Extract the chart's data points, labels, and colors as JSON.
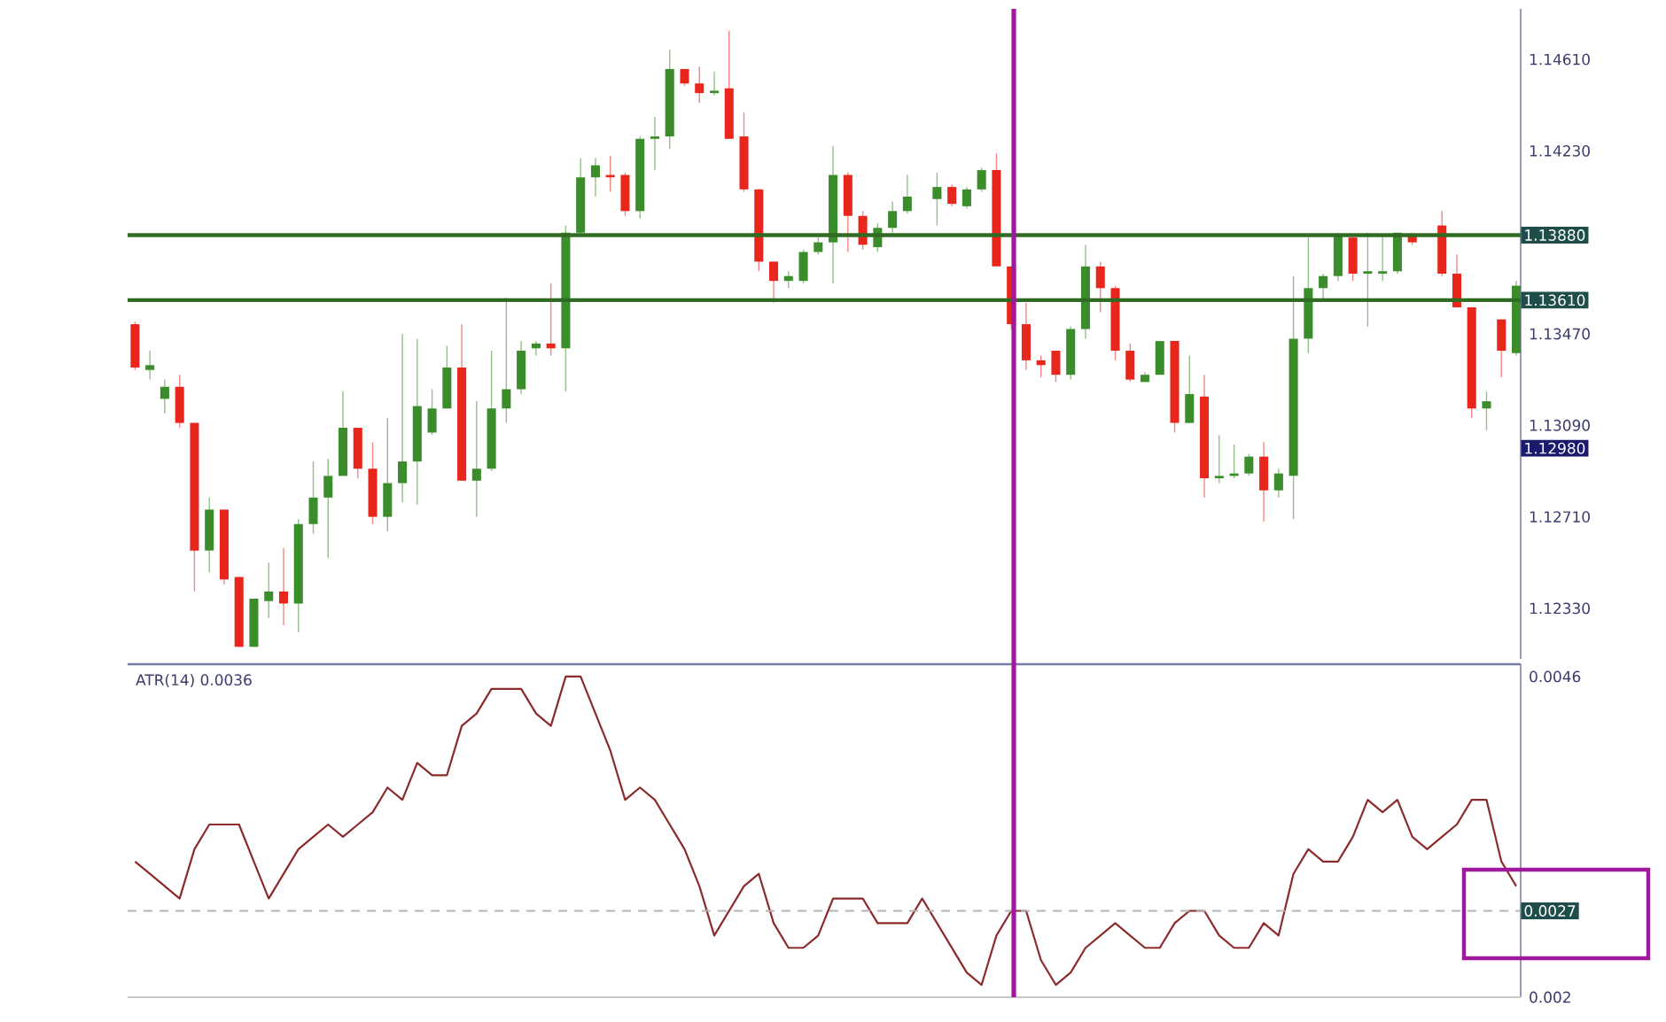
{
  "chart_data": [
    {
      "type": "candlestick",
      "categories": [
        null,
        null,
        null,
        null,
        null,
        null,
        null,
        null,
        null,
        null,
        null,
        null,
        null,
        null,
        null,
        null,
        null,
        null,
        null,
        null,
        null,
        null,
        null,
        null,
        null,
        null,
        null,
        null,
        null,
        null,
        null,
        null,
        null,
        null,
        null,
        null,
        null,
        null,
        null,
        null,
        null,
        null,
        null,
        null,
        null,
        null,
        null,
        null,
        null,
        null,
        null,
        null,
        null,
        null,
        null,
        null,
        null,
        null,
        null,
        null,
        null,
        null,
        null,
        null,
        null,
        null,
        null,
        null,
        null,
        null,
        null,
        null,
        null,
        null,
        null,
        null,
        null,
        null,
        null,
        null,
        null,
        null,
        null,
        null,
        null,
        null,
        null,
        null,
        null,
        null,
        null,
        null,
        null,
        null
      ],
      "ohlc": [
        [
          1.1351,
          1.1352,
          1.1332,
          1.1333
        ],
        [
          1.1332,
          1.134,
          1.1328,
          1.1334
        ],
        [
          1.132,
          1.1328,
          1.1314,
          1.1325
        ],
        [
          1.1325,
          1.133,
          1.1308,
          1.131
        ],
        [
          1.131,
          1.131,
          1.124,
          1.1257
        ],
        [
          1.1257,
          1.1279,
          1.1248,
          1.1274
        ],
        [
          1.1274,
          1.1274,
          1.1243,
          1.1245
        ],
        [
          1.1246,
          1.1246,
          1.1217,
          1.1217
        ],
        [
          1.1217,
          1.1237,
          1.1217,
          1.1237
        ],
        [
          1.1236,
          1.1252,
          1.1229,
          1.124
        ],
        [
          1.124,
          1.1258,
          1.1226,
          1.1235
        ],
        [
          1.1235,
          1.127,
          1.1223,
          1.1268
        ],
        [
          1.1268,
          1.1294,
          1.1264,
          1.1279
        ],
        [
          1.1279,
          1.1295,
          1.1254,
          1.1288
        ],
        [
          1.1288,
          1.1323,
          1.1288,
          1.1308
        ],
        [
          1.1308,
          1.1308,
          1.1287,
          1.1291
        ],
        [
          1.1291,
          1.1302,
          1.1268,
          1.1271
        ],
        [
          1.1271,
          1.1312,
          1.1265,
          1.1285
        ],
        [
          1.1285,
          1.1347,
          1.1277,
          1.1294
        ],
        [
          1.1294,
          1.1345,
          1.1276,
          1.1317
        ],
        [
          1.1306,
          1.1324,
          1.1305,
          1.1316
        ],
        [
          1.1316,
          1.1342,
          1.1316,
          1.1333
        ],
        [
          1.1333,
          1.1351,
          1.1286,
          1.1286
        ],
        [
          1.1286,
          1.1319,
          1.1271,
          1.1291
        ],
        [
          1.1291,
          1.134,
          1.129,
          1.1316
        ],
        [
          1.1316,
          1.1362,
          1.131,
          1.1324
        ],
        [
          1.1324,
          1.1344,
          1.1322,
          1.134
        ],
        [
          1.1341,
          1.1344,
          1.1338,
          1.1343
        ],
        [
          1.1343,
          1.1368,
          1.1338,
          1.1341
        ],
        [
          1.1341,
          1.1392,
          1.1323,
          1.1389
        ],
        [
          1.1389,
          1.142,
          1.1388,
          1.1412
        ],
        [
          1.1412,
          1.142,
          1.1404,
          1.1417
        ],
        [
          1.1413,
          1.1421,
          1.1406,
          1.1412
        ],
        [
          1.1413,
          1.1414,
          1.1396,
          1.1398
        ],
        [
          1.1398,
          1.1429,
          1.1395,
          1.1428
        ],
        [
          1.1428,
          1.1437,
          1.1415,
          1.1429
        ],
        [
          1.1429,
          1.1465,
          1.1424,
          1.1457
        ],
        [
          1.1457,
          1.1457,
          1.145,
          1.1451
        ],
        [
          1.1451,
          1.1458,
          1.1443,
          1.1447
        ],
        [
          1.1447,
          1.1456,
          1.1446,
          1.1448
        ],
        [
          1.1449,
          1.1473,
          1.1428,
          1.1428
        ],
        [
          1.1429,
          1.1439,
          1.1406,
          1.1407
        ],
        [
          1.1407,
          1.1407,
          1.1373,
          1.1377
        ],
        [
          1.1377,
          1.1377,
          1.136,
          1.1369
        ],
        [
          1.1369,
          1.1373,
          1.1366,
          1.1371
        ],
        [
          1.1369,
          1.1382,
          1.1368,
          1.1381
        ],
        [
          1.1381,
          1.1387,
          1.138,
          1.1385
        ],
        [
          1.1385,
          1.1425,
          1.1368,
          1.1413
        ],
        [
          1.1413,
          1.1414,
          1.1381,
          1.1396
        ],
        [
          1.1396,
          1.1398,
          1.1382,
          1.1384
        ],
        [
          1.1383,
          1.1393,
          1.1381,
          1.1391
        ],
        [
          1.1391,
          1.1402,
          1.1389,
          1.1398
        ],
        [
          1.1398,
          1.1413,
          1.1397,
          1.1404
        ],
        null,
        [
          1.1403,
          1.1414,
          1.1392,
          1.1408
        ],
        [
          1.1408,
          1.1409,
          1.14,
          1.1401
        ],
        [
          1.14,
          1.1408,
          1.1399,
          1.1407
        ],
        [
          1.1407,
          1.1416,
          1.1406,
          1.1415
        ],
        [
          1.1415,
          1.1422,
          1.1375,
          1.1375
        ],
        [
          1.1375,
          1.1375,
          1.1349,
          1.1351
        ],
        [
          1.1351,
          1.136,
          1.1332,
          1.1336
        ],
        [
          1.1336,
          1.1338,
          1.1329,
          1.1334
        ],
        [
          1.134,
          1.134,
          1.1327,
          1.133
        ],
        [
          1.133,
          1.135,
          1.1328,
          1.1349
        ],
        [
          1.1349,
          1.1384,
          1.1345,
          1.1375
        ],
        [
          1.1375,
          1.1377,
          1.1356,
          1.1366
        ],
        [
          1.1366,
          1.1367,
          1.1336,
          1.134
        ],
        [
          1.134,
          1.1343,
          1.1327,
          1.1328
        ],
        [
          1.1327,
          1.1331,
          1.1327,
          1.133
        ],
        [
          1.133,
          1.1344,
          1.133,
          1.1344
        ],
        [
          1.1344,
          1.1344,
          1.1306,
          1.131
        ],
        [
          1.131,
          1.1338,
          1.131,
          1.1322
        ],
        [
          1.1321,
          1.133,
          1.1279,
          1.1287
        ],
        [
          1.1287,
          1.1305,
          1.1285,
          1.1288
        ],
        [
          1.1288,
          1.1301,
          1.1287,
          1.1289
        ],
        [
          1.1289,
          1.1297,
          1.1288,
          1.1296
        ],
        [
          1.1296,
          1.1302,
          1.1269,
          1.1282
        ],
        [
          1.1282,
          1.1291,
          1.1279,
          1.1289
        ],
        [
          1.1288,
          1.1371,
          1.127,
          1.1345
        ],
        [
          1.1345,
          1.1387,
          1.1339,
          1.1366
        ],
        [
          1.1366,
          1.1372,
          1.1361,
          1.1371
        ],
        [
          1.1371,
          1.1389,
          1.1369,
          1.1388
        ],
        [
          1.1387,
          1.1388,
          1.1369,
          1.1372
        ],
        [
          1.1372,
          1.1389,
          1.135,
          1.1373
        ],
        [
          1.1372,
          1.1388,
          1.1369,
          1.1373
        ],
        [
          1.1373,
          1.1389,
          1.1372,
          1.1389
        ],
        [
          1.1388,
          1.1389,
          1.1384,
          1.1385
        ],
        null,
        [
          1.1392,
          1.1398,
          1.1371,
          1.1372
        ],
        [
          1.1372,
          1.138,
          1.1358,
          1.1358
        ],
        [
          1.1358,
          1.1358,
          1.1312,
          1.1316
        ],
        [
          1.1316,
          1.1323,
          1.1307,
          1.1319
        ],
        [
          1.1353,
          1.1353,
          1.1329,
          1.134
        ],
        [
          1.1339,
          1.1369,
          1.1338,
          1.1367
        ]
      ],
      "colors": [
        "#e8261c",
        "#3b8c2a",
        "#3b8c2a",
        "#e8261c",
        "#e8261c",
        "#3b8c2a",
        "#e8261c",
        "#e8261c",
        "#3b8c2a",
        "#3b8c2a",
        "#e8261c",
        "#3b8c2a",
        "#3b8c2a",
        "#3b8c2a",
        "#3b8c2a",
        "#e8261c",
        "#e8261c",
        "#3b8c2a",
        "#3b8c2a",
        "#3b8c2a",
        "#3b8c2a",
        "#3b8c2a",
        "#e8261c",
        "#3b8c2a",
        "#3b8c2a",
        "#3b8c2a",
        "#3b8c2a",
        "#3b8c2a",
        "#e8261c",
        "#3b8c2a",
        "#3b8c2a",
        "#3b8c2a",
        "#e8261c",
        "#e8261c",
        "#3b8c2a",
        "#3b8c2a",
        "#3b8c2a",
        "#e8261c",
        "#e8261c",
        "#3b8c2a",
        "#e8261c",
        "#e8261c",
        "#e8261c",
        "#e8261c",
        "#3b8c2a",
        "#3b8c2a",
        "#3b8c2a",
        "#3b8c2a",
        "#e8261c",
        "#e8261c",
        "#3b8c2a",
        "#3b8c2a",
        "#3b8c2a",
        null,
        "#3b8c2a",
        "#e8261c",
        "#3b8c2a",
        "#3b8c2a",
        "#e8261c",
        "#e8261c",
        "#e8261c",
        "#e8261c",
        "#e8261c",
        "#3b8c2a",
        "#3b8c2a",
        "#e8261c",
        "#e8261c",
        "#e8261c",
        "#3b8c2a",
        "#3b8c2a",
        "#e8261c",
        "#3b8c2a",
        "#e8261c",
        "#3b8c2a",
        "#3b8c2a",
        "#3b8c2a",
        "#e8261c",
        "#3b8c2a",
        "#3b8c2a",
        "#3b8c2a",
        "#3b8c2a",
        "#3b8c2a",
        "#e8261c",
        "#3b8c2a",
        "#3b8c2a",
        "#3b8c2a",
        "#e8261c",
        null,
        "#e8261c",
        "#e8261c",
        "#e8261c",
        "#3b8c2a",
        "#e8261c",
        "#3b8c2a"
      ],
      "ylim": [
        1.1212,
        1.1482
      ],
      "yticks": [
        {
          "value": 1.1233,
          "label": "1.12330"
        },
        {
          "value": 1.1271,
          "label": "1.12710"
        },
        {
          "value": 1.1309,
          "label": "1.13090"
        },
        {
          "value": 1.1347,
          "label": "1.13470"
        },
        {
          "value": 1.1423,
          "label": "1.14230"
        },
        {
          "value": 1.1461,
          "label": "1.14610"
        }
      ],
      "ref_lines": [
        {
          "axis": "y",
          "value": 1.1388,
          "label": "1.13880",
          "color": "#2f6b22"
        },
        {
          "axis": "y",
          "value": 1.1361,
          "label": "1.13610",
          "color": "#2f6b22"
        }
      ],
      "annotations": [
        "1.12980"
      ]
    },
    {
      "type": "line",
      "title": "ATR(14) 0.0036",
      "categories": [
        null,
        null,
        null,
        null,
        null,
        null,
        null,
        null,
        null,
        null,
        null,
        null,
        null,
        null,
        null,
        null,
        null,
        null,
        null,
        null,
        null,
        null,
        null,
        null,
        null,
        null,
        null,
        null,
        null,
        null,
        null,
        null,
        null,
        null,
        null,
        null,
        null,
        null,
        null,
        null,
        null,
        null,
        null,
        null,
        null,
        null,
        null,
        null,
        null,
        null,
        null,
        null,
        null,
        null,
        null,
        null,
        null,
        null,
        null,
        null,
        null,
        null,
        null,
        null,
        null,
        null,
        null,
        null,
        null,
        null,
        null,
        null,
        null,
        null,
        null,
        null,
        null,
        null,
        null,
        null,
        null,
        null,
        null,
        null,
        null,
        null,
        null,
        null,
        null,
        null,
        null,
        null,
        null,
        null
      ],
      "series": [
        {
          "color": "#8b2b2b",
          "values": [
            0.0031,
            0.003,
            0.0029,
            0.0028,
            0.0032,
            0.0034,
            0.0034,
            0.0034,
            0.0031,
            0.0028,
            0.003,
            0.0032,
            0.0033,
            0.0034,
            0.0033,
            0.0034,
            0.0035,
            0.0037,
            0.0036,
            0.0039,
            0.0038,
            0.0038,
            0.0042,
            0.0043,
            0.0045,
            0.0045,
            0.0045,
            0.0043,
            0.0042,
            0.0046,
            0.0046,
            0.0043,
            0.004,
            0.0036,
            0.0037,
            0.0036,
            0.0034,
            0.0032,
            0.0029,
            0.0025,
            0.0027,
            0.0029,
            0.003,
            0.0026,
            0.0024,
            0.0024,
            0.0025,
            0.0028,
            0.0028,
            0.0028,
            0.0026,
            0.0026,
            0.0026,
            0.0028,
            0.0026,
            0.0024,
            0.0022,
            0.0021,
            0.0025,
            0.0027,
            0.0027,
            0.0023,
            0.0021,
            0.0022,
            0.0024,
            0.0025,
            0.0026,
            0.0025,
            0.0024,
            0.0024,
            0.0026,
            0.0027,
            0.0027,
            0.0025,
            0.0024,
            0.0024,
            0.0026,
            0.0025,
            0.003,
            0.0032,
            0.0031,
            0.0031,
            0.0033,
            0.0036,
            0.0035,
            0.0036,
            0.0033,
            0.0032,
            0.0033,
            0.0034,
            0.0036,
            0.0036,
            0.0031,
            0.0029
          ]
        }
      ],
      "ylim": [
        0.002,
        0.0047
      ],
      "yticks": [
        0.002,
        0.0046
      ],
      "ref_lines": [
        {
          "axis": "y",
          "value": 0.0027,
          "label": "0.0027",
          "color": "#b4b4b4",
          "line_style": "dashed"
        }
      ]
    }
  ]
}
